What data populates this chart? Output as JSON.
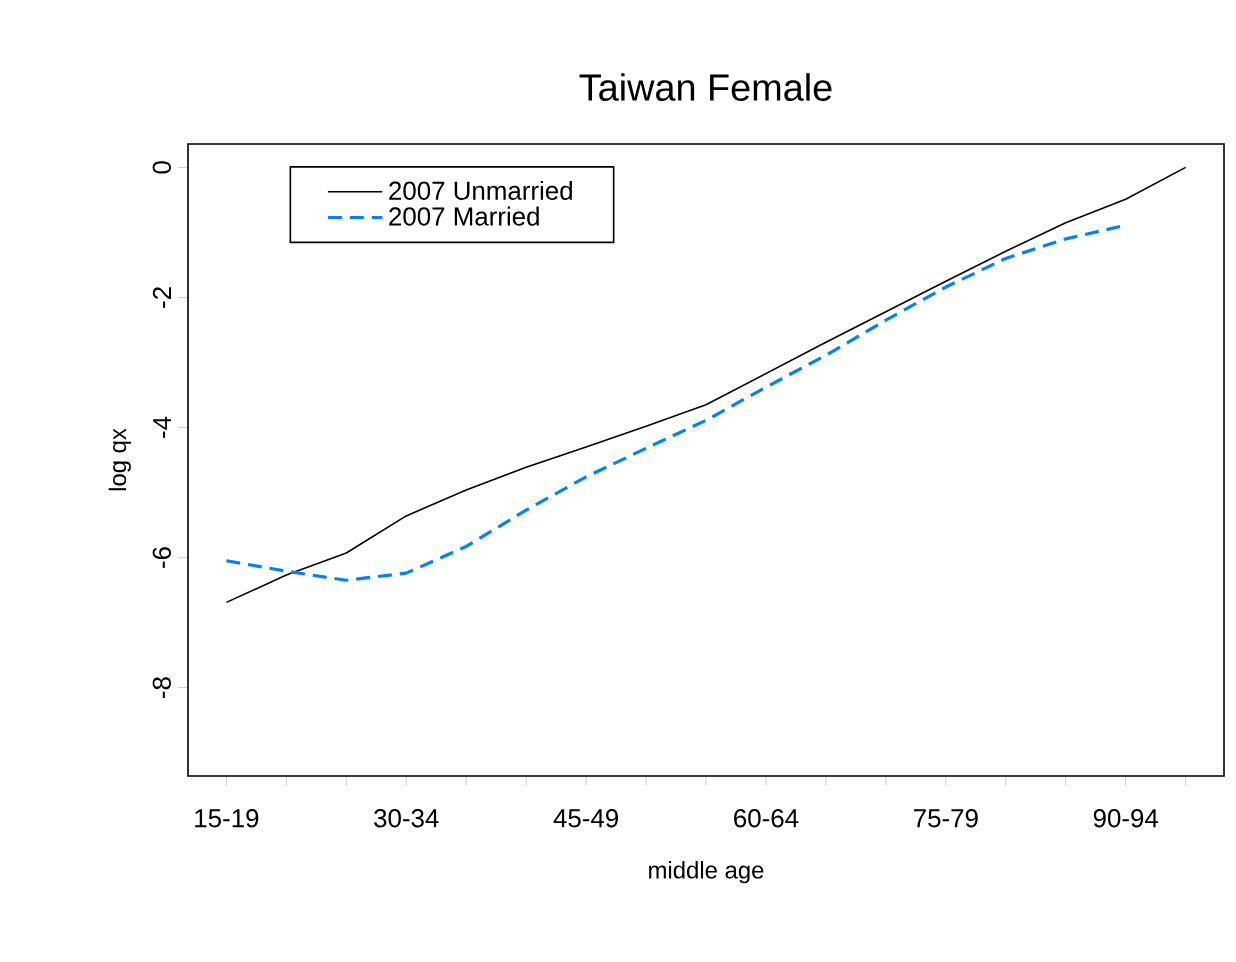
{
  "chart_data": {
    "type": "line",
    "title": "Taiwan Female",
    "xlabel": "middle age",
    "ylabel": "log qx",
    "categories": [
      "15-19",
      null,
      null,
      "30-34",
      null,
      null,
      "45-49",
      null,
      null,
      "60-64",
      null,
      null,
      "75-79",
      null,
      null,
      "90-94",
      null
    ],
    "series": [
      {
        "name": "2007 Unmarried",
        "color": "#000000",
        "line_style": "solid",
        "values": [
          -6.69,
          -6.27,
          -5.93,
          -5.36,
          -4.96,
          -4.61,
          -4.3,
          -3.98,
          -3.65,
          -3.17,
          -2.69,
          -2.22,
          -1.75,
          -1.29,
          -0.85,
          -0.49,
          0
        ]
      },
      {
        "name": "2007 Married",
        "color": "#0080ff",
        "line_style": "dashed",
        "values": [
          -6.05,
          -6.21,
          -6.35,
          -6.24,
          -5.83,
          -5.27,
          -4.76,
          -4.32,
          -3.89,
          -3.38,
          -2.89,
          -2.35,
          -1.84,
          -1.4,
          -1.1,
          -0.89,
          null
        ]
      }
    ],
    "ylim": [
      -9.36,
      0.36
    ],
    "yticks": [
      0,
      -2,
      -4,
      -6,
      -8
    ],
    "grid": false,
    "legend": "top left",
    "marker": "none"
  }
}
